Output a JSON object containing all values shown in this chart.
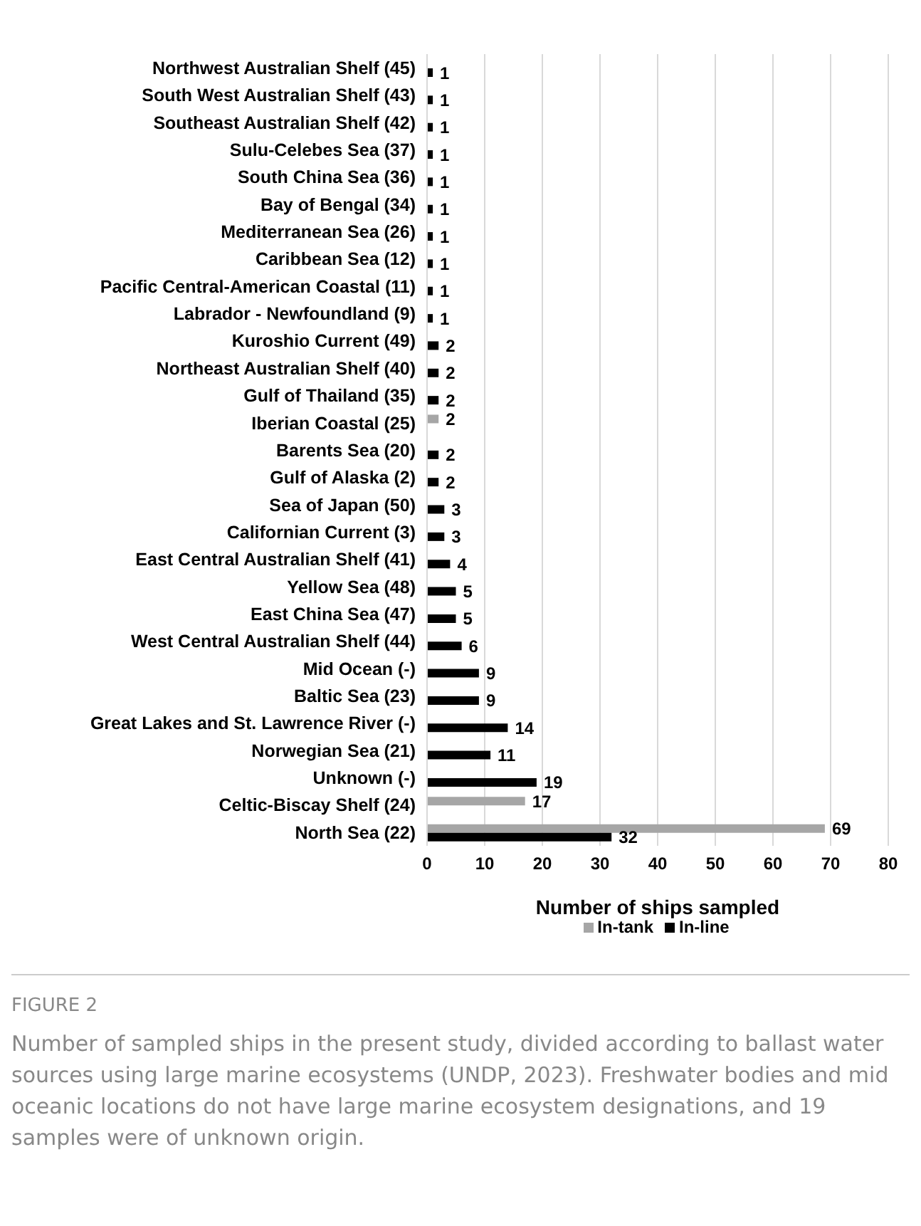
{
  "chart_data": {
    "type": "bar",
    "orientation": "horizontal",
    "xlabel": "Number of ships sampled",
    "categories": [
      "Northwest Australian Shelf (45)",
      "South West Australian Shelf (43)",
      "Southeast Australian Shelf (42)",
      "Sulu-Celebes Sea (37)",
      "South China Sea (36)",
      "Bay of Bengal (34)",
      "Mediterranean Sea (26)",
      "Caribbean Sea (12)",
      "Pacific Central-American Coastal (11)",
      "Labrador - Newfoundland (9)",
      "Kuroshio Current (49)",
      "Northeast Australian Shelf (40)",
      "Gulf of Thailand (35)",
      "Iberian Coastal (25)",
      "Barents Sea (20)",
      "Gulf of Alaska (2)",
      "Sea of Japan (50)",
      "Californian Current (3)",
      "East Central Australian Shelf (41)",
      "Yellow Sea (48)",
      "East China Sea (47)",
      "West Central Australian Shelf (44)",
      "Mid Ocean (-)",
      "Baltic Sea (23)",
      "Great Lakes and St. Lawrence River (-)",
      "Norwegian Sea (21)",
      "Unknown (-)",
      "Celtic-Biscay Shelf (24)",
      "North Sea (22)"
    ],
    "series": [
      {
        "name": "In-tank",
        "color": "#a6a6a6",
        "values": [
          null,
          null,
          null,
          null,
          null,
          null,
          null,
          null,
          null,
          null,
          null,
          null,
          null,
          2,
          null,
          null,
          null,
          null,
          null,
          null,
          null,
          null,
          null,
          null,
          null,
          null,
          null,
          17,
          69
        ]
      },
      {
        "name": "In-line",
        "color": "#000000",
        "values": [
          1,
          1,
          1,
          1,
          1,
          1,
          1,
          1,
          1,
          1,
          2,
          2,
          2,
          null,
          2,
          2,
          3,
          3,
          4,
          5,
          5,
          6,
          9,
          9,
          14,
          11,
          19,
          null,
          32
        ]
      }
    ],
    "xlim": [
      0,
      80
    ],
    "xticks": [
      0,
      10,
      20,
      30,
      40,
      50,
      60,
      70,
      80
    ],
    "grid": "x",
    "legend": "bottom",
    "data_labels": true,
    "annotations": [
      "FIGURE 2",
      "Number of sampled ships in the present study, divided according to ballast water sources using large marine ecosystems (UNDP, 2023). Freshwater bodies and mid oceanic locations do not have large marine ecosystem designations, and 19 samples were of unknown origin."
    ]
  }
}
